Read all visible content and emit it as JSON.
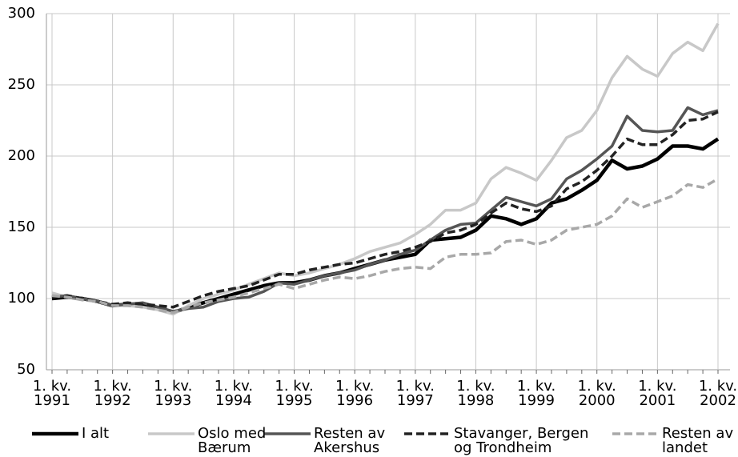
{
  "chart_data": {
    "type": "line",
    "categories": [
      "1. kv.\n1991",
      null,
      null,
      null,
      "1. kv.\n1992",
      null,
      null,
      null,
      "1. kv.\n1993",
      null,
      null,
      null,
      "1. kv.\n1994",
      null,
      null,
      null,
      "1. kv.\n1995",
      null,
      null,
      null,
      "1. kv.\n1996",
      null,
      null,
      null,
      "1. kv.\n1997",
      null,
      null,
      null,
      "1. kv.\n1998",
      null,
      null,
      null,
      "1. kv.\n1999",
      null,
      null,
      null,
      "1. kv.\n2000",
      null,
      null,
      null,
      "1. kv.\n2001",
      null,
      null,
      null,
      "1. kv.\n2002"
    ],
    "series": [
      {
        "name": "I alt",
        "color": "#000000",
        "dashed": false,
        "values": [
          100,
          101,
          100,
          98,
          95,
          96,
          96,
          93,
          90,
          94,
          97,
          100,
          103,
          106,
          109,
          111,
          111,
          113,
          116,
          118,
          121,
          124,
          127,
          129,
          131,
          141,
          142,
          143,
          148,
          158,
          156,
          152,
          156,
          167,
          170,
          176,
          183,
          197,
          191,
          193,
          198,
          207,
          207,
          205,
          212
        ]
      },
      {
        "name": "Oslo med\nBærum",
        "color": "#c8c8c8",
        "dashed": false,
        "values": [
          104,
          101,
          100,
          98,
          95,
          95,
          94,
          92,
          89,
          95,
          100,
          103,
          106,
          110,
          114,
          118,
          116,
          118,
          121,
          124,
          128,
          133,
          136,
          139,
          145,
          152,
          162,
          162,
          167,
          184,
          192,
          188,
          183,
          197,
          213,
          218,
          232,
          255,
          270,
          261,
          256,
          272,
          280,
          274,
          293
        ]
      },
      {
        "name": "Resten av\nAkershus",
        "color": "#555555",
        "dashed": false,
        "values": [
          101,
          102,
          100,
          98,
          95,
          96,
          97,
          94,
          91,
          93,
          94,
          98,
          100,
          101,
          105,
          111,
          110,
          113,
          116,
          118,
          120,
          124,
          127,
          131,
          134,
          141,
          148,
          152,
          153,
          162,
          171,
          168,
          165,
          170,
          184,
          190,
          198,
          207,
          228,
          218,
          217,
          218,
          234,
          229,
          232
        ]
      },
      {
        "name": "Stavanger, Bergen\nog Trondheim",
        "color": "#222222",
        "dashed": true,
        "values": [
          101,
          102,
          100,
          98,
          96,
          97,
          96,
          95,
          94,
          98,
          102,
          105,
          107,
          109,
          113,
          117,
          117,
          120,
          122,
          124,
          125,
          128,
          131,
          133,
          136,
          140,
          146,
          148,
          152,
          160,
          167,
          163,
          161,
          165,
          177,
          182,
          190,
          200,
          212,
          208,
          208,
          215,
          225,
          226,
          231
        ]
      },
      {
        "name": "Resten av\nlandet",
        "color": "#a8a8a8",
        "dashed": true,
        "values": [
          102,
          101,
          99,
          98,
          95,
          95,
          94,
          92,
          90,
          94,
          97,
          99,
          101,
          104,
          107,
          110,
          107,
          110,
          113,
          115,
          114,
          116,
          119,
          121,
          122,
          121,
          129,
          131,
          131,
          132,
          140,
          141,
          138,
          141,
          148,
          150,
          152,
          158,
          170,
          164,
          168,
          172,
          180,
          178,
          184
        ]
      }
    ],
    "ylim": [
      50,
      300
    ],
    "yticks": [
      50,
      100,
      150,
      200,
      250,
      300
    ],
    "grid": true
  }
}
